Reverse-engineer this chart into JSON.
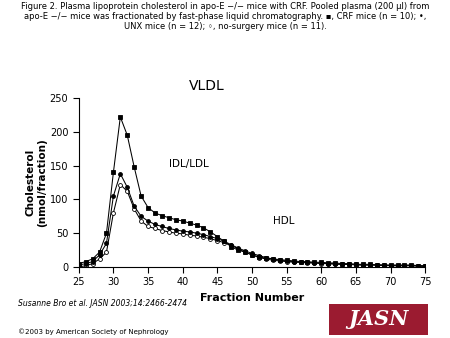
{
  "title_text": "Figure 2. Plasma lipoprotein cholesterol in apo-E −/− mice with CRF. Pooled plasma (200 μl) from\napo-E −/− mice was fractionated by fast-phase liquid chromatography. ▪, CRF mice (n = 10); •,\nUNX mice (n = 12); ◦, no-surgery mice (n = 11).",
  "xlabel": "Fraction Number",
  "ylabel": "Cholesterol\n(nmol/fraction)",
  "xlim": [
    25,
    75
  ],
  "ylim": [
    0,
    250
  ],
  "yticks": [
    0,
    50,
    100,
    150,
    200,
    250
  ],
  "xticks": [
    25,
    30,
    35,
    40,
    45,
    50,
    55,
    60,
    65,
    70,
    75
  ],
  "vldl_label": "VLDL",
  "idl_label": "IDL/LDL",
  "hdl_label": "HDL",
  "citation": "Susanne Bro et al. JASN 2003;14:2466-2474",
  "copyright": "©2003 by American Society of Nephrology",
  "jasn_text": "JASN",
  "jasn_bg": "#9B1B30",
  "fractions": [
    25,
    26,
    27,
    28,
    29,
    30,
    31,
    32,
    33,
    34,
    35,
    36,
    37,
    38,
    39,
    40,
    41,
    42,
    43,
    44,
    45,
    46,
    47,
    48,
    49,
    50,
    51,
    52,
    53,
    54,
    55,
    56,
    57,
    58,
    59,
    60,
    61,
    62,
    63,
    64,
    65,
    66,
    67,
    68,
    69,
    70,
    71,
    72,
    73,
    74,
    75
  ],
  "crf": [
    5,
    8,
    12,
    22,
    50,
    140,
    222,
    195,
    148,
    105,
    88,
    80,
    76,
    73,
    70,
    68,
    65,
    62,
    58,
    52,
    45,
    38,
    30,
    25,
    22,
    18,
    15,
    13,
    12,
    11,
    10,
    9,
    8,
    8,
    7,
    7,
    6,
    6,
    5,
    5,
    4,
    4,
    4,
    3,
    3,
    3,
    3,
    3,
    3,
    2,
    2
  ],
  "unx": [
    3,
    5,
    8,
    18,
    35,
    105,
    138,
    118,
    90,
    75,
    68,
    63,
    60,
    57,
    55,
    53,
    52,
    50,
    48,
    45,
    42,
    38,
    33,
    28,
    24,
    20,
    17,
    14,
    12,
    10,
    9,
    8,
    7,
    7,
    6,
    6,
    5,
    5,
    4,
    4,
    4,
    3,
    3,
    3,
    3,
    2,
    2,
    2,
    2,
    2,
    1
  ],
  "nosurg": [
    0,
    2,
    5,
    12,
    22,
    80,
    122,
    112,
    86,
    68,
    60,
    57,
    54,
    52,
    50,
    49,
    47,
    46,
    44,
    42,
    39,
    36,
    32,
    27,
    22,
    18,
    14,
    12,
    10,
    9,
    8,
    7,
    7,
    6,
    6,
    5,
    5,
    4,
    4,
    4,
    3,
    3,
    3,
    3,
    2,
    2,
    2,
    2,
    2,
    1,
    1
  ]
}
